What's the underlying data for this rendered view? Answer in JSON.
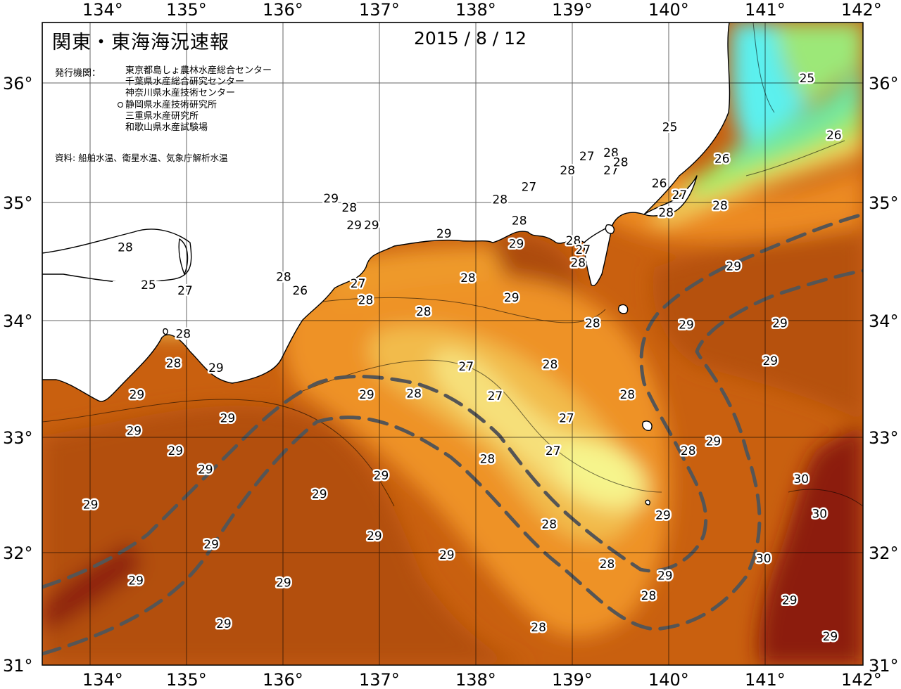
{
  "title": "関東・東海海況速報",
  "date": "2015 / 8 / 12",
  "institutions_label": "発行機関：",
  "institutions": [
    {
      "name": "東京都島しょ農林水産総合センター",
      "marked": false
    },
    {
      "name": "千葉県水産総合研究センター",
      "marked": false
    },
    {
      "name": "神奈川県水産技術センター",
      "marked": false
    },
    {
      "name": "静岡県水産技術研究所",
      "marked": true
    },
    {
      "name": "三重県水産研究所",
      "marked": false
    },
    {
      "name": "和歌山県水産試験場",
      "marked": false
    }
  ],
  "source": "資料: 船舶水温、衛星水温、気象庁解析水温",
  "longitude_labels": [
    "134°",
    "135°",
    "136°",
    "137°",
    "138°",
    "139°",
    "140°",
    "141°",
    "142°"
  ],
  "latitude_labels": [
    "36°",
    "35°",
    "34°",
    "33°",
    "32°",
    "31°"
  ],
  "chart_data": {
    "type": "heatmap",
    "variable": "sea surface temperature (°C)",
    "lon_range": [
      133.5,
      142
    ],
    "lat_range": [
      31,
      36.5
    ],
    "color_scale": {
      "24": "#55f0f0",
      "25": "#77e890",
      "26": "#a8ee66",
      "27": "#f6f08a",
      "27.5": "#f6d060",
      "28": "#f6a83a",
      "28.5": "#ee8a22",
      "29": "#d06212",
      "29.5": "#b04e0c",
      "30": "#8a1808"
    },
    "land_color": "#ffffff",
    "coast_color": "#000000",
    "current_path_color": "#555555",
    "isotherm_labels": [
      {
        "value": 25,
        "lon": 134.6,
        "lat": 34.25
      },
      {
        "value": 27,
        "lon": 134.98,
        "lat": 34.2
      },
      {
        "value": 28,
        "lon": 134.96,
        "lat": 33.83
      },
      {
        "value": 28,
        "lon": 134.86,
        "lat": 33.58
      },
      {
        "value": 29,
        "lon": 135.3,
        "lat": 33.54
      },
      {
        "value": 29,
        "lon": 134.48,
        "lat": 33.31
      },
      {
        "value": 29,
        "lon": 135.42,
        "lat": 33.11
      },
      {
        "value": 29,
        "lon": 134.45,
        "lat": 33.0
      },
      {
        "value": 29,
        "lon": 134.88,
        "lat": 32.83
      },
      {
        "value": 29,
        "lon": 135.19,
        "lat": 32.67
      },
      {
        "value": 29,
        "lon": 134.0,
        "lat": 32.37
      },
      {
        "value": 29,
        "lon": 135.25,
        "lat": 32.03
      },
      {
        "value": 29,
        "lon": 134.47,
        "lat": 31.72
      },
      {
        "value": 29,
        "lon": 135.38,
        "lat": 31.35
      },
      {
        "value": 29,
        "lon": 136.86,
        "lat": 33.31
      },
      {
        "value": 29,
        "lon": 136.37,
        "lat": 32.46
      },
      {
        "value": 29,
        "lon": 136.0,
        "lat": 31.7
      },
      {
        "value": 29,
        "lon": 137.01,
        "lat": 32.62
      },
      {
        "value": 29,
        "lon": 136.94,
        "lat": 32.1
      },
      {
        "value": 29,
        "lon": 137.69,
        "lat": 31.94
      },
      {
        "value": 28,
        "lon": 137.45,
        "lat": 34.02
      },
      {
        "value": 28,
        "lon": 137.91,
        "lat": 34.31
      },
      {
        "value": 28,
        "lon": 137.35,
        "lat": 33.32
      },
      {
        "value": 28,
        "lon": 138.11,
        "lat": 32.76
      },
      {
        "value": 28,
        "lon": 138.76,
        "lat": 33.57
      },
      {
        "value": 28,
        "lon": 138.75,
        "lat": 32.2
      },
      {
        "value": 28,
        "lon": 139.35,
        "lat": 31.86
      },
      {
        "value": 28,
        "lon": 138.64,
        "lat": 31.32
      },
      {
        "value": 28,
        "lon": 139.78,
        "lat": 31.59
      },
      {
        "value": 28,
        "lon": 139.56,
        "lat": 33.31
      },
      {
        "value": 28,
        "lon": 139.2,
        "lat": 33.92
      },
      {
        "value": 28,
        "lon": 140.19,
        "lat": 32.83
      },
      {
        "value": 27,
        "lon": 137.89,
        "lat": 33.55
      },
      {
        "value": 27,
        "lon": 138.19,
        "lat": 33.3
      },
      {
        "value": 27,
        "lon": 138.93,
        "lat": 33.11
      },
      {
        "value": 27,
        "lon": 138.79,
        "lat": 32.83
      },
      {
        "value": 29,
        "lon": 138.36,
        "lat": 34.14
      },
      {
        "value": 29,
        "lon": 138.41,
        "lat": 34.6
      },
      {
        "value": 29,
        "lon": 137.66,
        "lat": 34.69
      },
      {
        "value": 28,
        "lon": 138.24,
        "lat": 34.98
      },
      {
        "value": 28,
        "lon": 138.44,
        "lat": 34.8
      },
      {
        "value": 27,
        "lon": 138.54,
        "lat": 35.09
      },
      {
        "value": 28,
        "lon": 139.0,
        "lat": 34.63
      },
      {
        "value": 27,
        "lon": 139.1,
        "lat": 34.55
      },
      {
        "value": 28,
        "lon": 139.05,
        "lat": 34.44
      },
      {
        "value": 28,
        "lon": 138.94,
        "lat": 35.23
      },
      {
        "value": 27,
        "lon": 139.14,
        "lat": 35.35
      },
      {
        "value": 28,
        "lon": 139.39,
        "lat": 35.38
      },
      {
        "value": 27,
        "lon": 139.39,
        "lat": 35.23
      },
      {
        "value": 28,
        "lon": 139.49,
        "lat": 35.3
      },
      {
        "value": 29,
        "lon": 139.93,
        "lat": 32.28
      },
      {
        "value": 29,
        "lon": 139.95,
        "lat": 31.76
      },
      {
        "value": 29,
        "lon": 140.17,
        "lat": 33.91
      },
      {
        "value": 29,
        "lon": 140.45,
        "lat": 32.91
      },
      {
        "value": 29,
        "lon": 140.66,
        "lat": 34.41
      },
      {
        "value": 29,
        "lon": 141.14,
        "lat": 33.92
      },
      {
        "value": 29,
        "lon": 141.04,
        "lat": 33.6
      },
      {
        "value": 30,
        "lon": 141.36,
        "lat": 32.59
      },
      {
        "value": 30,
        "lon": 141.55,
        "lat": 32.29
      },
      {
        "value": 30,
        "lon": 140.97,
        "lat": 31.91
      },
      {
        "value": 29,
        "lon": 141.24,
        "lat": 31.55
      },
      {
        "value": 29,
        "lon": 141.66,
        "lat": 31.24
      },
      {
        "value": 28,
        "lon": 139.96,
        "lat": 34.87
      },
      {
        "value": 28,
        "lon": 140.52,
        "lat": 34.93
      },
      {
        "value": 27,
        "lon": 140.1,
        "lat": 35.02
      },
      {
        "value": 26,
        "lon": 139.89,
        "lat": 35.12
      },
      {
        "value": 26,
        "lon": 140.54,
        "lat": 35.33
      },
      {
        "value": 26,
        "lon": 141.7,
        "lat": 35.53
      },
      {
        "value": 25,
        "lon": 140.0,
        "lat": 35.6
      },
      {
        "value": 25,
        "lon": 141.42,
        "lat": 36.02
      },
      {
        "value": 28,
        "lon": 134.36,
        "lat": 34.57
      },
      {
        "value": 27,
        "lon": 136.77,
        "lat": 34.26
      },
      {
        "value": 26,
        "lon": 136.17,
        "lat": 34.2
      },
      {
        "value": 28,
        "lon": 136.68,
        "lat": 34.91
      },
      {
        "value": 29,
        "lon": 136.49,
        "lat": 34.99
      },
      {
        "value": 28,
        "lon": 136.85,
        "lat": 34.12
      },
      {
        "value": 28,
        "lon": 136.0,
        "lat": 34.32
      },
      {
        "value": 29,
        "lon": 136.91,
        "lat": 34.76
      },
      {
        "value": 29,
        "lon": 136.73,
        "lat": 34.76
      }
    ]
  }
}
